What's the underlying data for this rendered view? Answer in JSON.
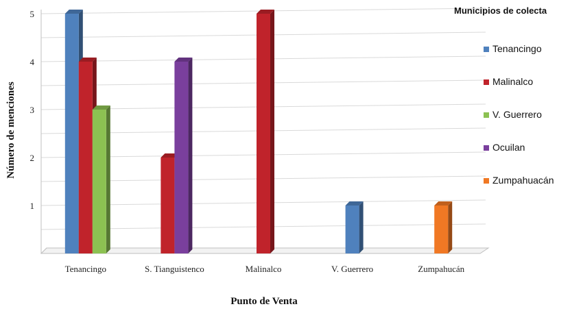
{
  "chart_data": {
    "type": "bar",
    "categories": [
      "Tenancingo",
      "S. Tianguistenco",
      "Malinalco",
      "V. Guerrero",
      "Zumpahucán"
    ],
    "series": [
      {
        "name": "Tenancingo",
        "color": "#4f81bd",
        "values": [
          5,
          0,
          0,
          1,
          0
        ]
      },
      {
        "name": "Malinalco",
        "color": "#c0232b",
        "values": [
          4,
          2,
          5,
          0,
          0
        ]
      },
      {
        "name": "V. Guerrero",
        "color": "#8cc152",
        "values": [
          3,
          0,
          0,
          0,
          0
        ]
      },
      {
        "name": "Ocuilan",
        "color": "#7a3f9d",
        "values": [
          0,
          4,
          0,
          0,
          0
        ]
      },
      {
        "name": "Zumpahuacán",
        "color": "#f07824",
        "values": [
          0,
          0,
          0,
          0,
          1
        ]
      }
    ],
    "xlabel": "Punto de Venta",
    "ylabel": "Número de menciones",
    "yticks": [
      "1",
      "2",
      "3",
      "4",
      "5"
    ],
    "ylim": [
      0,
      5
    ],
    "legend_title": "Municipios de colecta",
    "legend_position": "right",
    "grid": true
  }
}
